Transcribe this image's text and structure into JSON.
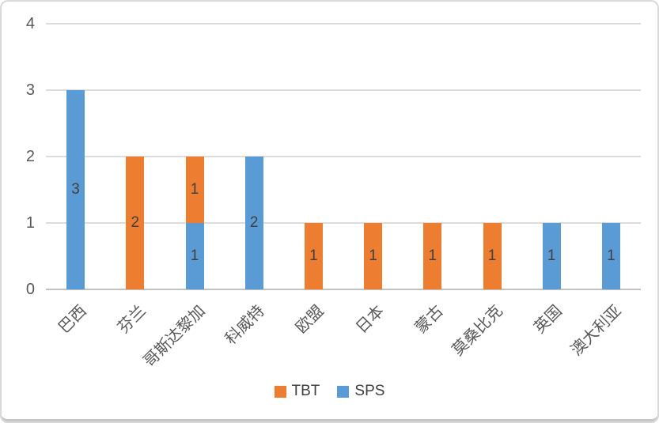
{
  "chart_data": {
    "type": "bar",
    "stacked": true,
    "title": "",
    "xlabel": "",
    "ylabel": "",
    "categories": [
      "巴西",
      "芬兰",
      "哥斯达黎加",
      "科威特",
      "欧盟",
      "日本",
      "蒙古",
      "莫桑比克",
      "英国",
      "澳大利亚"
    ],
    "series": [
      {
        "name": "TBT",
        "color": "#ED7D31",
        "values": [
          0,
          2,
          1,
          0,
          1,
          1,
          1,
          1,
          0,
          0
        ]
      },
      {
        "name": "SPS",
        "color": "#5B9BD5",
        "values": [
          3,
          0,
          1,
          2,
          0,
          0,
          0,
          0,
          1,
          1
        ]
      }
    ],
    "stack_order_bottom_to_top": [
      "SPS",
      "TBT"
    ],
    "totals": [
      3,
      2,
      2,
      2,
      1,
      1,
      1,
      1,
      1,
      1
    ],
    "ylim": [
      0,
      4
    ],
    "yticks": [
      0,
      1,
      2,
      3,
      4
    ],
    "grid": true,
    "data_labels_position": "center",
    "legend_position": "bottom",
    "legend": [
      "TBT",
      "SPS"
    ],
    "colors": {
      "tbt": "#ED7D31",
      "sps": "#5B9BD5",
      "gridline": "#DCDCDC",
      "axis_line": "#C2C2C2",
      "tick_label": "#595959",
      "data_label": "#404040",
      "background": "#FFFFFF",
      "frame_border": "#D9D9D9"
    }
  }
}
